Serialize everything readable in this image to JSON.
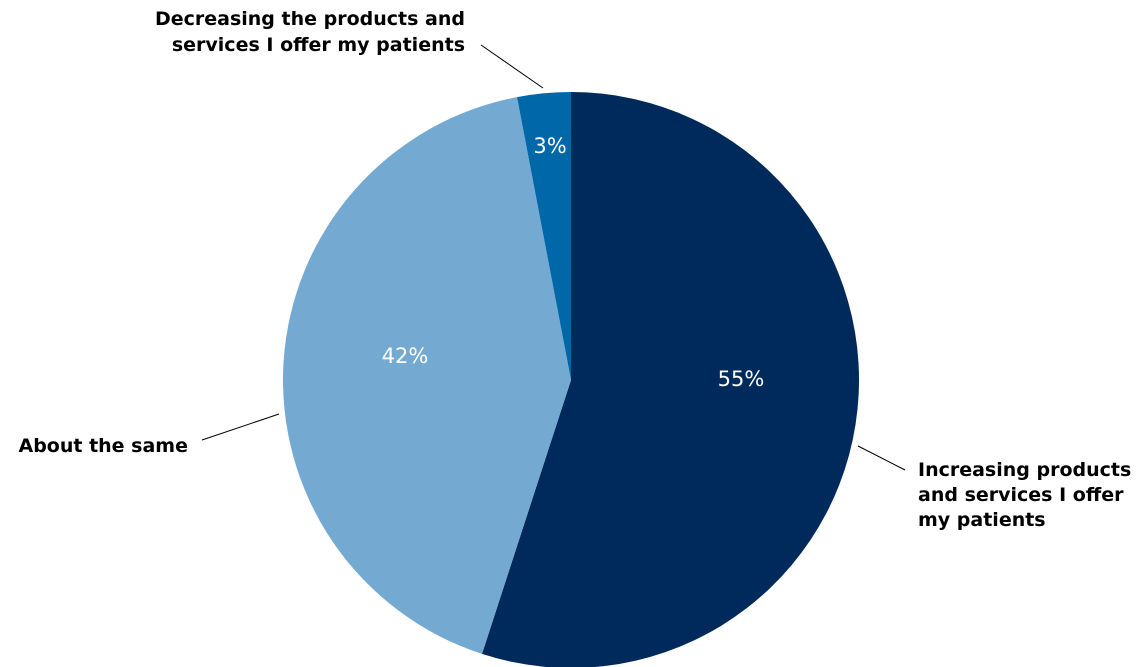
{
  "chart_data": {
    "type": "pie",
    "slices": [
      {
        "key": "increasing",
        "label": "Increasing products and services I offer my patients",
        "label_lines": [
          "Increasing products",
          "and services I offer",
          "my patients"
        ],
        "value": 55,
        "display": "55%",
        "color": "#002a5c"
      },
      {
        "key": "same",
        "label": "About the same",
        "label_lines": [
          "About the same"
        ],
        "value": 42,
        "display": "42%",
        "color": "#74aad2"
      },
      {
        "key": "decreasing",
        "label": "Decreasing the products and services I offer my patients",
        "label_lines": [
          "Decreasing the products and",
          "services I offer my patients"
        ],
        "value": 3,
        "display": "3%",
        "color": "#0068a8"
      }
    ],
    "start_angle": "12 o'clock",
    "direction": "clockwise",
    "legend": "none (callout labels)"
  }
}
